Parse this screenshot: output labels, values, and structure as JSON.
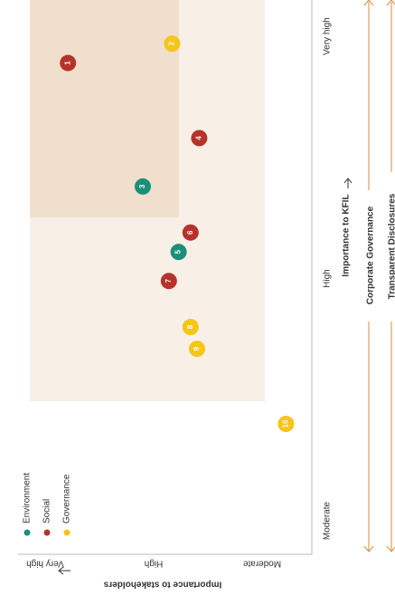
{
  "chart_data": {
    "type": "scatter",
    "xlabel": "Importance to stakeholders",
    "ylabel": "Importance to KFIL",
    "xlim": [
      0.6,
      3.3
    ],
    "ylim": [
      1,
      3.15
    ],
    "xticks": [
      {
        "value": 1,
        "label": "Moderate"
      },
      {
        "value": 2,
        "label": "High"
      },
      {
        "value": 3,
        "label": "Very high"
      }
    ],
    "yticks": [
      {
        "value": 1,
        "label": "Moderate"
      },
      {
        "value": 2,
        "label": "High"
      },
      {
        "value": 3,
        "label": "Very high"
      }
    ],
    "series": [
      {
        "name": "Environment",
        "color": "#1a8f7a",
        "labels": [
          "3",
          "5"
        ],
        "x": [
          2.1,
          1.77
        ],
        "y": [
          2.38,
          2.11
        ]
      },
      {
        "name": "Social",
        "color": "#b5332a",
        "labels": [
          "1",
          "4",
          "6",
          "7"
        ],
        "x": [
          2.79,
          1.58,
          1.66,
          1.86
        ],
        "y": [
          2.89,
          2.58,
          2.19,
          1.99
        ]
      },
      {
        "name": "Governance",
        "color": "#f5c518",
        "labels": [
          "2",
          "8",
          "9",
          "10"
        ],
        "x": [
          1.83,
          1.66,
          1.6,
          0.78
        ],
        "y": [
          2.97,
          1.8,
          1.71,
          1.4
        ]
      }
    ],
    "themes": [
      "Corporate Governance",
      "Transparent Disclosures"
    ]
  }
}
